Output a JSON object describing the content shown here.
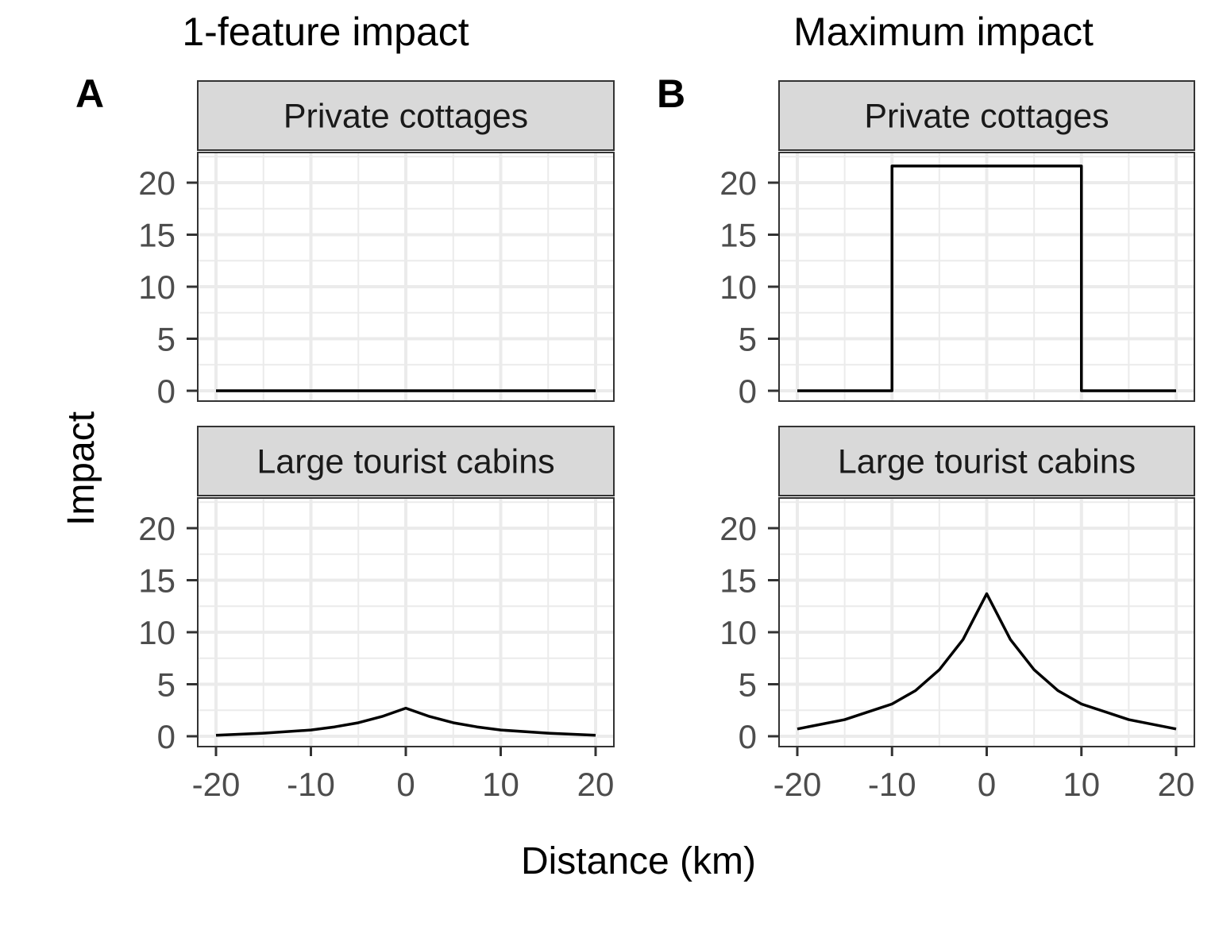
{
  "figure": {
    "x_label": "Distance (km)",
    "y_label": "Impact"
  },
  "chart_data": [
    {
      "type": "line",
      "tag": "A",
      "column_title": "1-feature impact",
      "facet": "Private cottages",
      "xlim": [
        -20,
        20
      ],
      "ylim": [
        0,
        22
      ],
      "x_ticks": [
        "-20",
        "-10",
        "0",
        "10",
        "20"
      ],
      "y_ticks": [
        "0",
        "5",
        "10",
        "15",
        "20"
      ],
      "grid": true,
      "x": [
        -20,
        0,
        20
      ],
      "y": [
        0,
        0,
        0
      ]
    },
    {
      "type": "line",
      "tag": "A",
      "column_title": "1-feature impact",
      "facet": "Large tourist cabins",
      "xlim": [
        -20,
        20
      ],
      "ylim": [
        0,
        22
      ],
      "x_ticks": [
        "-20",
        "-10",
        "0",
        "10",
        "20"
      ],
      "y_ticks": [
        "0",
        "5",
        "10",
        "15",
        "20"
      ],
      "grid": true,
      "x": [
        -20,
        -15,
        -10,
        -7.5,
        -5,
        -2.5,
        0,
        2.5,
        5,
        7.5,
        10,
        15,
        20
      ],
      "y": [
        0.1,
        0.3,
        0.6,
        0.9,
        1.3,
        1.9,
        2.7,
        1.9,
        1.3,
        0.9,
        0.6,
        0.3,
        0.1
      ]
    },
    {
      "type": "line",
      "tag": "B",
      "column_title": "Maximum impact",
      "facet": "Private cottages",
      "xlim": [
        -20,
        20
      ],
      "ylim": [
        0,
        22
      ],
      "x_ticks": [
        "-20",
        "-10",
        "0",
        "10",
        "20"
      ],
      "y_ticks": [
        "0",
        "5",
        "10",
        "15",
        "20"
      ],
      "grid": true,
      "x": [
        -20,
        -10,
        -10,
        10,
        10,
        20
      ],
      "y": [
        0,
        0,
        21.6,
        21.6,
        0,
        0
      ]
    },
    {
      "type": "line",
      "tag": "B",
      "column_title": "Maximum impact",
      "facet": "Large tourist cabins",
      "xlim": [
        -20,
        20
      ],
      "ylim": [
        0,
        22
      ],
      "x_ticks": [
        "-20",
        "-10",
        "0",
        "10",
        "20"
      ],
      "y_ticks": [
        "0",
        "5",
        "10",
        "15",
        "20"
      ],
      "grid": true,
      "x": [
        -20,
        -15,
        -10,
        -7.5,
        -5,
        -2.5,
        0,
        2.5,
        5,
        7.5,
        10,
        15,
        20
      ],
      "y": [
        0.7,
        1.6,
        3.1,
        4.4,
        6.4,
        9.3,
        13.7,
        9.3,
        6.4,
        4.4,
        3.1,
        1.6,
        0.7
      ]
    }
  ]
}
